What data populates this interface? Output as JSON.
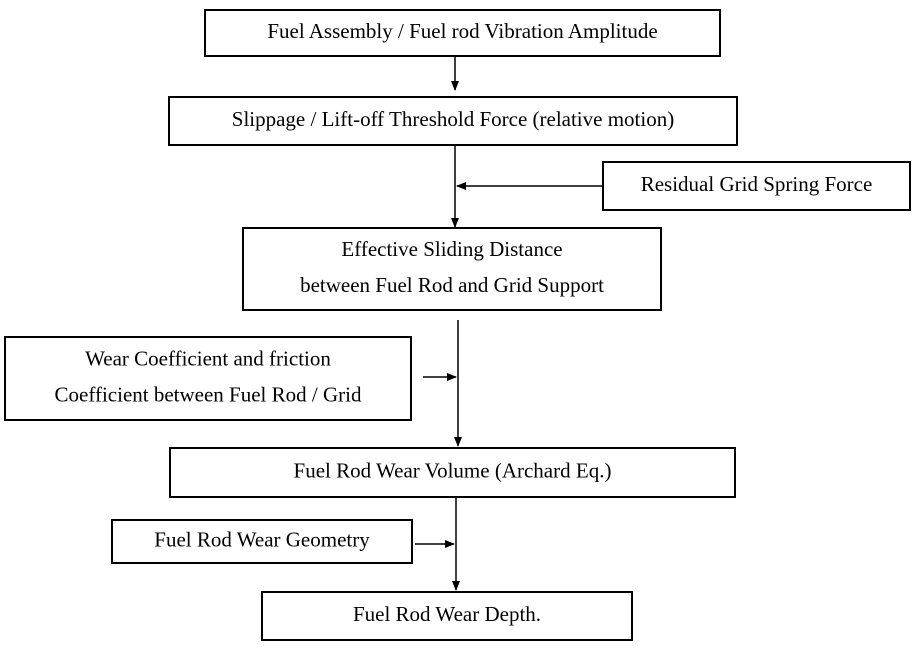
{
  "nodes": [
    {
      "lines": [
        "Fuel Assembly / Fuel rod Vibration Amplitude"
      ]
    },
    {
      "lines": [
        "Slippage / Lift-off Threshold Force (relative motion)"
      ]
    },
    {
      "lines": [
        "Residual Grid Spring Force"
      ]
    },
    {
      "lines": [
        "Effective Sliding Distance",
        "between Fuel Rod and Grid Support"
      ]
    },
    {
      "lines": [
        "Wear Coefficient and friction",
        "Coefficient between Fuel Rod / Grid"
      ]
    },
    {
      "lines": [
        "Fuel Rod Wear Volume (Archard Eq.)"
      ]
    },
    {
      "lines": [
        "Fuel Rod Wear Geometry"
      ]
    },
    {
      "lines": [
        "Fuel Rod Wear Depth."
      ]
    }
  ]
}
